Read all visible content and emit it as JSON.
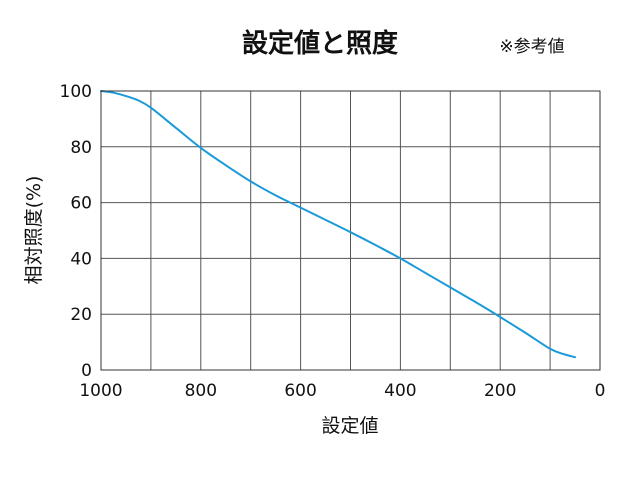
{
  "chart_data": {
    "type": "line",
    "title": "設定値と照度",
    "note": "※参考値",
    "xlabel": "設定値",
    "ylabel": "相対照度(%)",
    "xlim": [
      1000,
      0
    ],
    "ylim": [
      0,
      100
    ],
    "xticks": [
      1000,
      800,
      600,
      400,
      200,
      0
    ],
    "yticks": [
      0,
      20,
      40,
      60,
      80,
      100
    ],
    "xgrid": [
      1000,
      900,
      800,
      700,
      600,
      500,
      400,
      300,
      200,
      100,
      0
    ],
    "ygrid": [
      0,
      20,
      40,
      60,
      80,
      100
    ],
    "grid": true,
    "line_color": "#1a9ad8",
    "series": [
      {
        "x": [
          1000,
          975,
          950,
          925,
          900,
          850,
          800,
          750,
          700,
          650,
          600,
          550,
          500,
          450,
          400,
          350,
          300,
          250,
          200,
          150,
          100,
          75,
          50
        ],
        "values": [
          100,
          99.4,
          98.2,
          96.6,
          94,
          86.8,
          79.6,
          73.4,
          67.6,
          62.6,
          58.2,
          53.8,
          49.4,
          44.8,
          40,
          34.8,
          29.6,
          24.4,
          19,
          13.4,
          7.6,
          5.8,
          4.6
        ]
      }
    ]
  }
}
